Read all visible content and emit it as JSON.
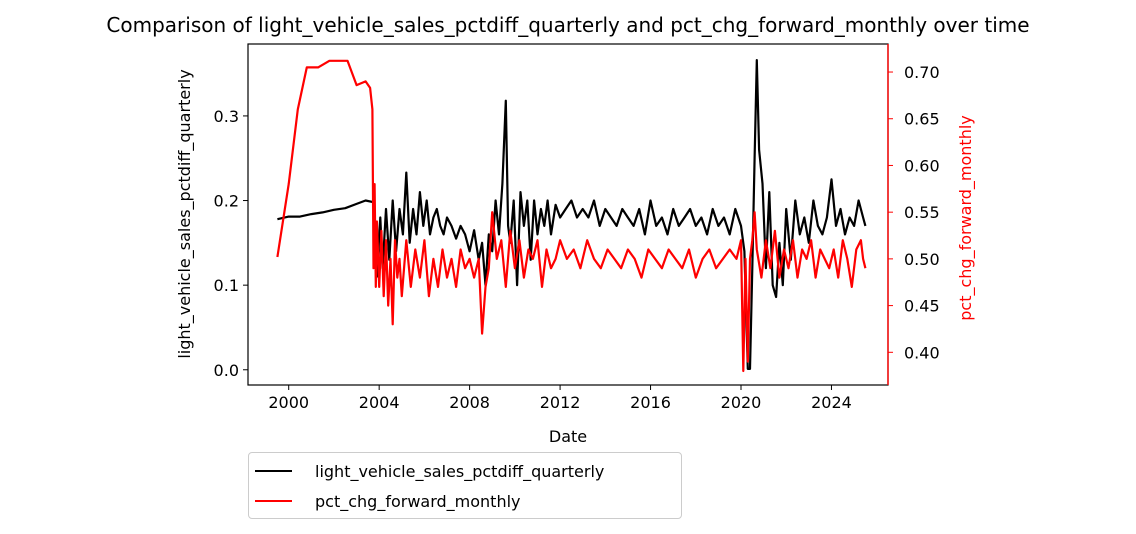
{
  "chart_data": {
    "type": "line",
    "title": "Comparison of light_vehicle_sales_pctdiff_quarterly and pct_chg_forward_monthly over time",
    "xlabel": "Date",
    "ylabel_left": "light_vehicle_sales_pctdiff_quarterly",
    "ylabel_right": "pct_chg_forward_monthly",
    "xlim": [
      1998.2,
      2026.5
    ],
    "ylim_left": [
      -0.018,
      0.385
    ],
    "ylim_right": [
      0.365,
      0.73
    ],
    "x_ticks": [
      "2000",
      "2004",
      "2008",
      "2012",
      "2016",
      "2020",
      "2024"
    ],
    "y_ticks_left": [
      "0.0",
      "0.1",
      "0.2",
      "0.3"
    ],
    "y_ticks_right": [
      "0.40",
      "0.45",
      "0.50",
      "0.55",
      "0.60",
      "0.65",
      "0.70"
    ],
    "legend": {
      "placement": "below-left",
      "entries": [
        "light_vehicle_sales_pctdiff_quarterly",
        "pct_chg_forward_monthly"
      ]
    },
    "grid": false,
    "series": [
      {
        "name": "light_vehicle_sales_pctdiff_quarterly",
        "axis": "left",
        "color": "#000000",
        "x": [
          1999.5,
          2000.0,
          2000.5,
          2001.0,
          2001.5,
          2002.0,
          2002.5,
          2003.0,
          2003.4,
          2003.75,
          2003.9,
          2004.05,
          2004.15,
          2004.3,
          2004.45,
          2004.6,
          2004.75,
          2004.9,
          2005.05,
          2005.2,
          2005.35,
          2005.5,
          2005.65,
          2005.8,
          2005.95,
          2006.1,
          2006.25,
          2006.4,
          2006.55,
          2006.7,
          2006.85,
          2007.0,
          2007.2,
          2007.4,
          2007.6,
          2007.8,
          2008.0,
          2008.2,
          2008.4,
          2008.55,
          2008.7,
          2008.85,
          2009.0,
          2009.15,
          2009.3,
          2009.45,
          2009.6,
          2009.7,
          2009.8,
          2009.95,
          2010.1,
          2010.25,
          2010.4,
          2010.55,
          2010.7,
          2010.85,
          2011.0,
          2011.15,
          2011.3,
          2011.45,
          2011.6,
          2011.8,
          2012.0,
          2012.25,
          2012.5,
          2012.75,
          2013.0,
          2013.25,
          2013.5,
          2013.75,
          2014.0,
          2014.25,
          2014.5,
          2014.75,
          2015.0,
          2015.25,
          2015.5,
          2015.75,
          2016.0,
          2016.25,
          2016.5,
          2016.75,
          2017.0,
          2017.25,
          2017.5,
          2017.75,
          2018.0,
          2018.25,
          2018.5,
          2018.75,
          2019.0,
          2019.25,
          2019.5,
          2019.75,
          2020.0,
          2020.15,
          2020.3,
          2020.4,
          2020.5,
          2020.6,
          2020.7,
          2020.8,
          2020.95,
          2021.1,
          2021.25,
          2021.4,
          2021.55,
          2021.7,
          2021.85,
          2022.0,
          2022.2,
          2022.4,
          2022.6,
          2022.8,
          2023.0,
          2023.2,
          2023.4,
          2023.6,
          2023.8,
          2024.0,
          2024.2,
          2024.4,
          2024.6,
          2024.8,
          2025.0,
          2025.2,
          2025.4,
          2025.5
        ],
        "y": [
          0.178,
          0.181,
          0.181,
          0.184,
          0.186,
          0.189,
          0.191,
          0.196,
          0.2,
          0.198,
          0.11,
          0.18,
          0.12,
          0.19,
          0.13,
          0.2,
          0.14,
          0.19,
          0.16,
          0.233,
          0.15,
          0.19,
          0.16,
          0.21,
          0.17,
          0.2,
          0.16,
          0.18,
          0.19,
          0.17,
          0.16,
          0.18,
          0.17,
          0.155,
          0.17,
          0.16,
          0.14,
          0.165,
          0.13,
          0.15,
          0.1,
          0.16,
          0.14,
          0.2,
          0.16,
          0.22,
          0.318,
          0.17,
          0.15,
          0.2,
          0.1,
          0.21,
          0.17,
          0.2,
          0.13,
          0.2,
          0.16,
          0.19,
          0.17,
          0.2,
          0.16,
          0.195,
          0.18,
          0.19,
          0.2,
          0.18,
          0.19,
          0.18,
          0.2,
          0.17,
          0.19,
          0.18,
          0.17,
          0.19,
          0.18,
          0.17,
          0.19,
          0.16,
          0.2,
          0.17,
          0.18,
          0.16,
          0.19,
          0.17,
          0.18,
          0.19,
          0.17,
          0.18,
          0.16,
          0.19,
          0.17,
          0.18,
          0.16,
          0.19,
          0.17,
          0.14,
          0.001,
          0.001,
          0.12,
          0.25,
          0.366,
          0.26,
          0.22,
          0.12,
          0.21,
          0.1,
          0.086,
          0.15,
          0.1,
          0.19,
          0.13,
          0.2,
          0.16,
          0.18,
          0.15,
          0.2,
          0.17,
          0.16,
          0.18,
          0.225,
          0.17,
          0.19,
          0.16,
          0.18,
          0.17,
          0.2,
          0.18,
          0.17
        ]
      },
      {
        "name": "pct_chg_forward_monthly",
        "axis": "right",
        "color": "#ff0000",
        "x": [
          1999.5,
          2000.0,
          2000.4,
          2000.8,
          2001.3,
          2001.8,
          2002.3,
          2002.6,
          2003.0,
          2003.4,
          2003.6,
          2003.7,
          2003.75,
          2003.8,
          2003.85,
          2003.9,
          2004.0,
          2004.1,
          2004.2,
          2004.3,
          2004.4,
          2004.5,
          2004.6,
          2004.7,
          2004.8,
          2004.9,
          2005.0,
          2005.2,
          2005.4,
          2005.6,
          2005.8,
          2006.0,
          2006.2,
          2006.4,
          2006.6,
          2006.8,
          2007.0,
          2007.2,
          2007.4,
          2007.6,
          2007.8,
          2008.0,
          2008.2,
          2008.4,
          2008.55,
          2008.7,
          2008.85,
          2009.0,
          2009.2,
          2009.4,
          2009.6,
          2009.8,
          2010.0,
          2010.2,
          2010.4,
          2010.6,
          2010.8,
          2011.0,
          2011.2,
          2011.4,
          2011.6,
          2011.8,
          2012.0,
          2012.3,
          2012.6,
          2012.9,
          2013.2,
          2013.5,
          2013.8,
          2014.1,
          2014.4,
          2014.7,
          2015.0,
          2015.3,
          2015.6,
          2015.9,
          2016.2,
          2016.5,
          2016.8,
          2017.1,
          2017.4,
          2017.7,
          2018.0,
          2018.3,
          2018.6,
          2018.9,
          2019.2,
          2019.5,
          2019.8,
          2020.0,
          2020.1,
          2020.2,
          2020.3,
          2020.4,
          2020.5,
          2020.6,
          2020.7,
          2020.9,
          2021.1,
          2021.3,
          2021.5,
          2021.7,
          2021.9,
          2022.1,
          2022.3,
          2022.5,
          2022.7,
          2022.9,
          2023.1,
          2023.3,
          2023.5,
          2023.7,
          2023.9,
          2024.1,
          2024.3,
          2024.5,
          2024.7,
          2024.9,
          2025.1,
          2025.3,
          2025.4,
          2025.5
        ],
        "y": [
          0.502,
          0.58,
          0.66,
          0.705,
          0.705,
          0.712,
          0.712,
          0.712,
          0.686,
          0.69,
          0.683,
          0.66,
          0.49,
          0.58,
          0.47,
          0.54,
          0.47,
          0.53,
          0.46,
          0.52,
          0.45,
          0.5,
          0.43,
          0.52,
          0.48,
          0.5,
          0.46,
          0.52,
          0.47,
          0.51,
          0.48,
          0.52,
          0.46,
          0.5,
          0.47,
          0.51,
          0.48,
          0.5,
          0.47,
          0.51,
          0.49,
          0.5,
          0.48,
          0.5,
          0.42,
          0.47,
          0.49,
          0.55,
          0.5,
          0.52,
          0.47,
          0.53,
          0.49,
          0.52,
          0.48,
          0.51,
          0.5,
          0.52,
          0.47,
          0.51,
          0.49,
          0.5,
          0.52,
          0.5,
          0.51,
          0.49,
          0.52,
          0.5,
          0.49,
          0.51,
          0.5,
          0.49,
          0.51,
          0.5,
          0.48,
          0.51,
          0.5,
          0.49,
          0.51,
          0.5,
          0.49,
          0.51,
          0.48,
          0.5,
          0.51,
          0.49,
          0.5,
          0.51,
          0.5,
          0.52,
          0.38,
          0.5,
          0.39,
          0.5,
          0.52,
          0.55,
          0.51,
          0.48,
          0.52,
          0.49,
          0.53,
          0.48,
          0.51,
          0.49,
          0.52,
          0.48,
          0.51,
          0.5,
          0.52,
          0.48,
          0.51,
          0.5,
          0.49,
          0.51,
          0.48,
          0.52,
          0.5,
          0.47,
          0.51,
          0.52,
          0.5,
          0.49
        ]
      }
    ]
  }
}
